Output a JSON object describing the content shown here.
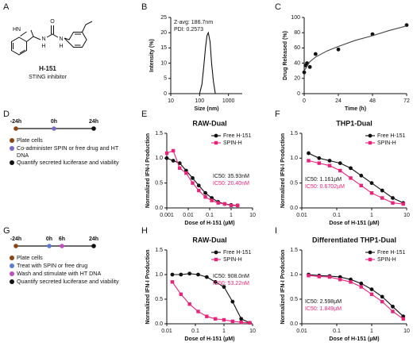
{
  "panel_labels": [
    "A",
    "B",
    "C",
    "D",
    "E",
    "F",
    "G",
    "H",
    "I"
  ],
  "molecule": {
    "name": "H-151",
    "caption": "STING inhibitor",
    "atoms": [
      "HN",
      "O",
      "N",
      "H",
      "N",
      "H"
    ]
  },
  "timelines": [
    {
      "times": [
        "-24h",
        "0h",
        "24h"
      ],
      "colors": [
        "#8b4513",
        "#7b68c8",
        "#111111"
      ],
      "steps": [
        {
          "text": "Plate cells",
          "color": "#8b4513"
        },
        {
          "text": "Co-administer SPIN or free drug and HT DNA",
          "color": "#7b68c8"
        },
        {
          "text": "Quantify secreted luciferase and viability",
          "color": "#111111"
        }
      ]
    },
    {
      "times": [
        "-24h",
        "0h",
        "6h",
        "24h"
      ],
      "colors": [
        "#8b4513",
        "#5b7bd5",
        "#c04fc0",
        "#111111"
      ],
      "steps": [
        {
          "text": "Plate cells",
          "color": "#8b4513"
        },
        {
          "text": "Treat with SPIN or free drug",
          "color": "#5b7bd5"
        },
        {
          "text": "Wash and stimulate with HT DNA",
          "color": "#c04fc0"
        },
        {
          "text": "Quantify secreted luciferase and viability",
          "color": "#111111"
        }
      ]
    }
  ],
  "chart_data": [
    {
      "type": "line",
      "x_label": "Size (nm)",
      "y_label": "Intensity (%)",
      "xscale": "log",
      "xlim": [
        10,
        3000
      ],
      "xticks": [
        10,
        100,
        1000
      ],
      "ylim": [
        0,
        25
      ],
      "yticks": [
        0,
        5,
        10,
        15,
        20,
        25
      ],
      "annotations": [
        {
          "text": "Z-avg: 186.7nm",
          "color": "#111111"
        },
        {
          "text": "PDI: 0.2573",
          "color": "#111111"
        }
      ],
      "series": [
        {
          "color": "#111111",
          "mode": "line",
          "x": [
            100,
            120,
            140,
            160,
            180,
            200,
            230,
            260,
            300,
            350
          ],
          "values": [
            0,
            3,
            9,
            15,
            19,
            20,
            17,
            10,
            4,
            0
          ]
        }
      ]
    },
    {
      "type": "scatter",
      "x_label": "Time (h)",
      "y_label": "Drug Released (%)",
      "xlim": [
        0,
        72
      ],
      "xticks": [
        0,
        24,
        48,
        72
      ],
      "ylim": [
        0,
        100
      ],
      "yticks": [
        0,
        20,
        40,
        60,
        80,
        100
      ],
      "series": [
        {
          "color": "#111111",
          "mode": "markers",
          "marker": "circle",
          "x": [
            0,
            1,
            2,
            4,
            8,
            24,
            48,
            72
          ],
          "values": [
            28,
            37,
            40,
            35,
            52,
            58,
            78,
            90
          ]
        },
        {
          "color": "#444444",
          "mode": "line",
          "x": [
            0,
            4,
            8,
            16,
            24,
            36,
            48,
            60,
            72
          ],
          "values": [
            30,
            42,
            48,
            56,
            62,
            70,
            76,
            83,
            89
          ]
        }
      ]
    },
    {
      "type": "line",
      "title": "RAW-Dual",
      "x_label": "Dose of H-151 (µM)",
      "y_label": "Normalized IFN-I Production",
      "xscale": "log",
      "xlim": [
        0.001,
        10
      ],
      "xticks": [
        0.001,
        0.01,
        0.1,
        1,
        10
      ],
      "ylim": [
        0,
        1.5
      ],
      "yticks": [
        {
          "value": 0,
          "label": "0.0"
        },
        0.5,
        {
          "value": 1,
          "label": "1.0"
        },
        1.5
      ],
      "legend": "upper right",
      "annotations": [
        {
          "text": "IC50: 35.93nM",
          "color": "#111111"
        },
        {
          "text": "IC50: 20.40nM",
          "color": "#e8247a"
        }
      ],
      "series": [
        {
          "name": "Free H-151",
          "color": "#111111",
          "mode": "markers+line",
          "marker": "circle",
          "x": [
            0.001,
            0.002,
            0.004,
            0.008,
            0.016,
            0.031,
            0.063,
            0.125,
            0.25,
            0.5,
            1,
            2
          ],
          "values": [
            1.0,
            0.95,
            0.9,
            0.75,
            0.6,
            0.45,
            0.3,
            0.2,
            0.12,
            0.08,
            0.06,
            0.05
          ]
        },
        {
          "name": "SPIN-H",
          "color": "#e8247a",
          "mode": "markers+line",
          "marker": "square",
          "x": [
            0.001,
            0.002,
            0.004,
            0.008,
            0.016,
            0.031,
            0.063,
            0.125,
            0.25,
            0.5,
            1,
            2
          ],
          "values": [
            1.1,
            1.15,
            0.8,
            0.7,
            0.5,
            0.35,
            0.22,
            0.15,
            0.1,
            0.08,
            0.05,
            0.05
          ]
        }
      ]
    },
    {
      "type": "line",
      "title": "THP1-Dual",
      "x_label": "Dose of H-151 (µM)",
      "y_label": "Normalized IFN-I Production",
      "xscale": "log",
      "xlim": [
        0.01,
        10
      ],
      "xticks": [
        0.01,
        0.1,
        1,
        10
      ],
      "ylim": [
        0,
        1.5
      ],
      "yticks": [
        {
          "value": 0,
          "label": "0.0"
        },
        0.5,
        {
          "value": 1,
          "label": "1.0"
        },
        1.5
      ],
      "legend": "upper right",
      "annotations": [
        {
          "text": "IC50: 1.161µM",
          "color": "#111111"
        },
        {
          "text": "IC50: 0.6702µM",
          "color": "#e8247a"
        }
      ],
      "series": [
        {
          "name": "Free H-151",
          "color": "#111111",
          "mode": "markers+line",
          "marker": "circle",
          "x": [
            0.0156,
            0.03125,
            0.0625,
            0.125,
            0.25,
            0.5,
            1,
            2,
            4,
            8
          ],
          "values": [
            1.1,
            1.0,
            0.95,
            0.9,
            0.8,
            0.65,
            0.5,
            0.35,
            0.2,
            0.1
          ]
        },
        {
          "name": "SPIN-H",
          "color": "#e8247a",
          "mode": "markers+line",
          "marker": "square",
          "x": [
            0.0156,
            0.03125,
            0.0625,
            0.125,
            0.25,
            0.5,
            1,
            2,
            4,
            8
          ],
          "values": [
            0.95,
            0.9,
            0.85,
            0.75,
            0.6,
            0.45,
            0.3,
            0.2,
            0.1,
            0.08
          ]
        }
      ]
    },
    {
      "type": "line",
      "title": "RAW-Dual",
      "x_label": "Dose of H-151 (µM)",
      "y_label": "Normalized IFN-I Production",
      "xscale": "log",
      "xlim": [
        0.01,
        10
      ],
      "xticks": [
        0.01,
        0.1,
        1,
        10
      ],
      "ylim": [
        0,
        1.5
      ],
      "yticks": [
        {
          "value": 0,
          "label": "0.0"
        },
        0.5,
        {
          "value": 1,
          "label": "1.0"
        },
        1.5
      ],
      "legend": "upper right",
      "annotations": [
        {
          "text": "IC50: 908.0nM",
          "color": "#111111"
        },
        {
          "text": "IC50: 53.22nM",
          "color": "#e8247a"
        }
      ],
      "series": [
        {
          "name": "Free H-151",
          "color": "#111111",
          "mode": "markers+line",
          "marker": "circle",
          "x": [
            0.0156,
            0.03125,
            0.0625,
            0.125,
            0.25,
            0.5,
            1,
            2,
            4,
            8
          ],
          "values": [
            1.0,
            1.0,
            1.02,
            1.0,
            0.95,
            0.85,
            0.75,
            0.45,
            0.1,
            0.02
          ]
        },
        {
          "name": "SPIN-H",
          "color": "#e8247a",
          "mode": "markers+line",
          "marker": "square",
          "x": [
            0.0156,
            0.03125,
            0.0625,
            0.125,
            0.25,
            0.5,
            1,
            2,
            4,
            8
          ],
          "values": [
            0.85,
            0.6,
            0.4,
            0.25,
            0.15,
            0.1,
            0.08,
            0.05,
            0.03,
            0.02
          ]
        }
      ]
    },
    {
      "type": "line",
      "title": "Differentiated THP1-Dual",
      "x_label": "Dose of H-151 (µM)",
      "y_label": "Normalized IFN-I Production",
      "xscale": "log",
      "xlim": [
        0.01,
        10
      ],
      "xticks": [
        0.01,
        0.1,
        1,
        10
      ],
      "ylim": [
        0,
        1.5
      ],
      "yticks": [
        {
          "value": 0,
          "label": "0.0"
        },
        0.5,
        {
          "value": 1,
          "label": "1.0"
        },
        1.5
      ],
      "legend": "upper right",
      "annotations": [
        {
          "text": "IC50: 2.598µM",
          "color": "#111111"
        },
        {
          "text": "IC50: 1.849µM",
          "color": "#e8247a"
        }
      ],
      "series": [
        {
          "name": "Free H-151",
          "color": "#111111",
          "mode": "markers+line",
          "marker": "circle",
          "x": [
            0.0156,
            0.03125,
            0.0625,
            0.125,
            0.25,
            0.5,
            1,
            2,
            4,
            8
          ],
          "values": [
            1.0,
            0.98,
            0.97,
            0.95,
            0.9,
            0.82,
            0.7,
            0.55,
            0.35,
            0.15
          ]
        },
        {
          "name": "SPIN-H",
          "color": "#e8247a",
          "mode": "markers+line",
          "marker": "square",
          "x": [
            0.0156,
            0.03125,
            0.0625,
            0.125,
            0.25,
            0.5,
            1,
            2,
            4,
            8
          ],
          "values": [
            0.98,
            0.96,
            0.95,
            0.9,
            0.85,
            0.75,
            0.6,
            0.45,
            0.25,
            0.1
          ]
        }
      ]
    }
  ]
}
